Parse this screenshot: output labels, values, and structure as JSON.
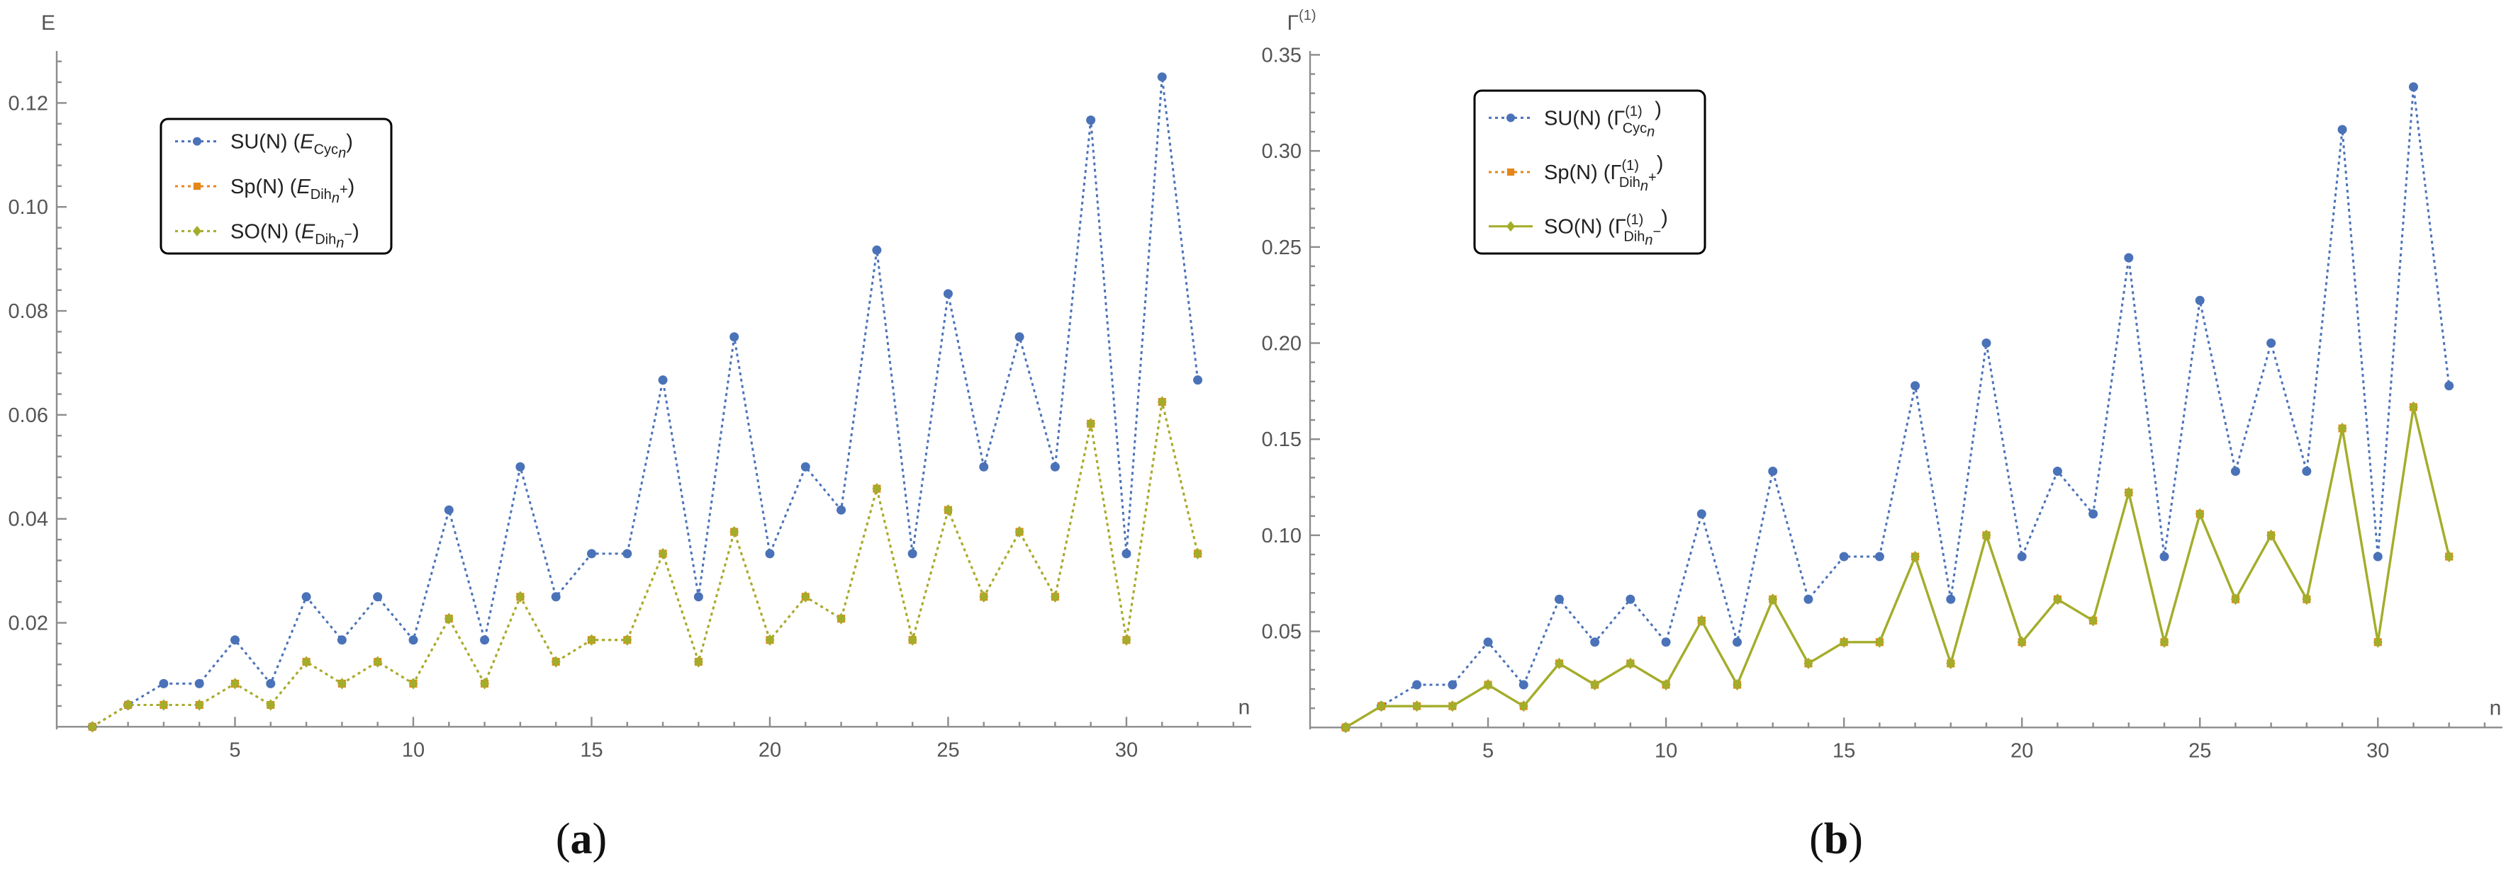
{
  "chart_data": [
    {
      "type": "line",
      "caption": "(a)",
      "caption_letter": "a",
      "ylabel": "E",
      "xlabel": "n",
      "xlim": [
        0,
        33.5
      ],
      "ylim": [
        -0.0005,
        0.13
      ],
      "xticks": [
        5,
        10,
        15,
        20,
        25,
        30
      ],
      "yticks": [
        0.02,
        0.04,
        0.06,
        0.08,
        0.1,
        0.12
      ],
      "ytick_labels": [
        "0.02",
        "0.04",
        "0.06",
        "0.08",
        "0.10",
        "0.12"
      ],
      "x": [
        1,
        2,
        3,
        4,
        5,
        6,
        7,
        8,
        9,
        10,
        11,
        12,
        13,
        14,
        15,
        16,
        17,
        18,
        19,
        20,
        21,
        22,
        23,
        24,
        25,
        26,
        27,
        28,
        29,
        30,
        31,
        32
      ],
      "legend_position": "top-left",
      "series": [
        {
          "name": "SU(N)",
          "sym": "E",
          "sub": "Cyc",
          "subsub": "n",
          "sup": "",
          "color": "#4a72b8",
          "marker": "circle",
          "style": "dotted",
          "values": [
            0,
            0.0042,
            0.0083,
            0.0083,
            0.0167,
            0.0083,
            0.025,
            0.0167,
            0.025,
            0.0167,
            0.0417,
            0.0167,
            0.05,
            0.025,
            0.0333,
            0.0333,
            0.0667,
            0.025,
            0.075,
            0.0333,
            0.05,
            0.0417,
            0.0917,
            0.0333,
            0.0833,
            0.05,
            0.075,
            0.05,
            0.1167,
            0.0333,
            0.125,
            0.0667
          ]
        },
        {
          "name": "Sp(N)",
          "sym": "E",
          "sub": "Dih",
          "subsub": "n",
          "sup": "+",
          "color": "#e4861a",
          "marker": "square",
          "style": "dotted",
          "values": [
            0,
            0.0042,
            0.0042,
            0.0042,
            0.0083,
            0.0042,
            0.0125,
            0.0083,
            0.0125,
            0.0083,
            0.0208,
            0.0083,
            0.025,
            0.0125,
            0.0167,
            0.0167,
            0.0333,
            0.0125,
            0.0375,
            0.0167,
            0.025,
            0.0208,
            0.0458,
            0.0167,
            0.0417,
            0.025,
            0.0375,
            0.025,
            0.0583,
            0.0167,
            0.0625,
            0.0333
          ]
        },
        {
          "name": "SO(N)",
          "sym": "E",
          "sub": "Dih",
          "subsub": "n",
          "sup": "−",
          "color": "#a3ad2a",
          "marker": "diamond",
          "style": "dotted",
          "values": [
            0,
            0.0042,
            0.0042,
            0.0042,
            0.0083,
            0.0042,
            0.0125,
            0.0083,
            0.0125,
            0.0083,
            0.0208,
            0.0083,
            0.025,
            0.0125,
            0.0167,
            0.0167,
            0.0333,
            0.0125,
            0.0375,
            0.0167,
            0.025,
            0.0208,
            0.0458,
            0.0167,
            0.0417,
            0.025,
            0.0375,
            0.025,
            0.0583,
            0.0167,
            0.0625,
            0.0333
          ]
        }
      ]
    },
    {
      "type": "line",
      "caption": "(b)",
      "caption_letter": "b",
      "ylabel": "Γ",
      "ylabel_sup": "(1)",
      "xlabel": "n",
      "xlim": [
        0,
        33.5
      ],
      "ylim": [
        -0.001,
        0.352
      ],
      "xticks": [
        5,
        10,
        15,
        20,
        25,
        30
      ],
      "yticks": [
        0.05,
        0.1,
        0.15,
        0.2,
        0.25,
        0.3,
        0.35
      ],
      "ytick_labels": [
        "0.05",
        "0.10",
        "0.15",
        "0.20",
        "0.25",
        "0.30",
        "0.35"
      ],
      "x": [
        1,
        2,
        3,
        4,
        5,
        6,
        7,
        8,
        9,
        10,
        11,
        12,
        13,
        14,
        15,
        16,
        17,
        18,
        19,
        20,
        21,
        22,
        23,
        24,
        25,
        26,
        27,
        28,
        29,
        30,
        31,
        32
      ],
      "legend_position": "top-left",
      "series": [
        {
          "name": "SU(N)",
          "sym": "Γ",
          "sub": "Cyc",
          "subsub": "n",
          "sup": "(1)",
          "color": "#4a72b8",
          "marker": "circle",
          "style": "dotted",
          "values": [
            0,
            0.0111,
            0.0222,
            0.0222,
            0.0444,
            0.0222,
            0.0667,
            0.0444,
            0.0667,
            0.0444,
            0.1111,
            0.0444,
            0.1333,
            0.0667,
            0.0889,
            0.0889,
            0.1778,
            0.0667,
            0.2,
            0.0889,
            0.1333,
            0.1111,
            0.2444,
            0.0889,
            0.2222,
            0.1333,
            0.2,
            0.1333,
            0.3111,
            0.0889,
            0.3333,
            0.1778
          ]
        },
        {
          "name": "Sp(N)",
          "sym": "Γ",
          "sub": "Dih",
          "subsub": "n",
          "sup": "(1)",
          "subsup": "+",
          "color": "#e4861a",
          "marker": "square",
          "style": "dotted",
          "values": [
            0,
            0.0111,
            0.0111,
            0.0111,
            0.0222,
            0.0111,
            0.0333,
            0.0222,
            0.0333,
            0.0222,
            0.0556,
            0.0222,
            0.0667,
            0.0333,
            0.0444,
            0.0444,
            0.0889,
            0.0333,
            0.1,
            0.0444,
            0.0667,
            0.0556,
            0.1222,
            0.0444,
            0.1111,
            0.0667,
            0.1,
            0.0667,
            0.1556,
            0.0444,
            0.1667,
            0.0889
          ]
        },
        {
          "name": "SO(N)",
          "sym": "Γ",
          "sub": "Dih",
          "subsub": "n",
          "sup": "(1)",
          "subsup": "−",
          "color": "#a3ad2a",
          "marker": "diamond",
          "style": "solid",
          "values": [
            0,
            0.0111,
            0.0111,
            0.0111,
            0.0222,
            0.0111,
            0.0333,
            0.0222,
            0.0333,
            0.0222,
            0.0556,
            0.0222,
            0.0667,
            0.0333,
            0.0444,
            0.0444,
            0.0889,
            0.0333,
            0.1,
            0.0444,
            0.0667,
            0.0556,
            0.1222,
            0.0444,
            0.1111,
            0.0667,
            0.1,
            0.0667,
            0.1556,
            0.0444,
            0.1667,
            0.0889
          ]
        }
      ]
    }
  ]
}
